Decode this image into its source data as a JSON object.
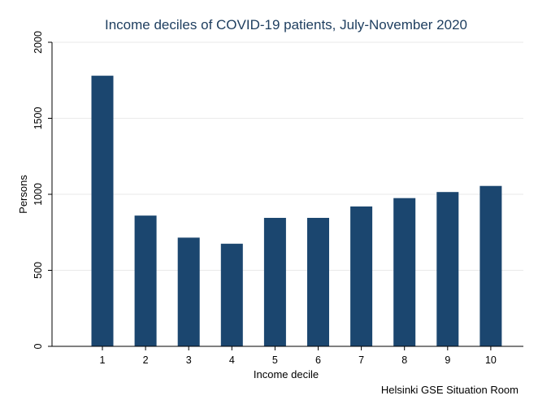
{
  "chart_data": {
    "type": "bar",
    "title": "Income deciles of COVID-19 patients, July-November 2020",
    "xlabel": "Income decile",
    "ylabel": "Persons",
    "categories": [
      "1",
      "2",
      "3",
      "4",
      "5",
      "6",
      "7",
      "8",
      "9",
      "10"
    ],
    "values": [
      1780,
      860,
      715,
      675,
      845,
      845,
      920,
      975,
      1015,
      1055
    ],
    "ylim": [
      0,
      2000
    ],
    "yticks": [
      "0",
      "500",
      "1000",
      "1500",
      "2000"
    ],
    "grid": true,
    "bar_color": "#1b466f",
    "grid_color": "#eaeaea",
    "title_color": "#1f3f60",
    "note": "Helsinki GSE Situation Room"
  }
}
